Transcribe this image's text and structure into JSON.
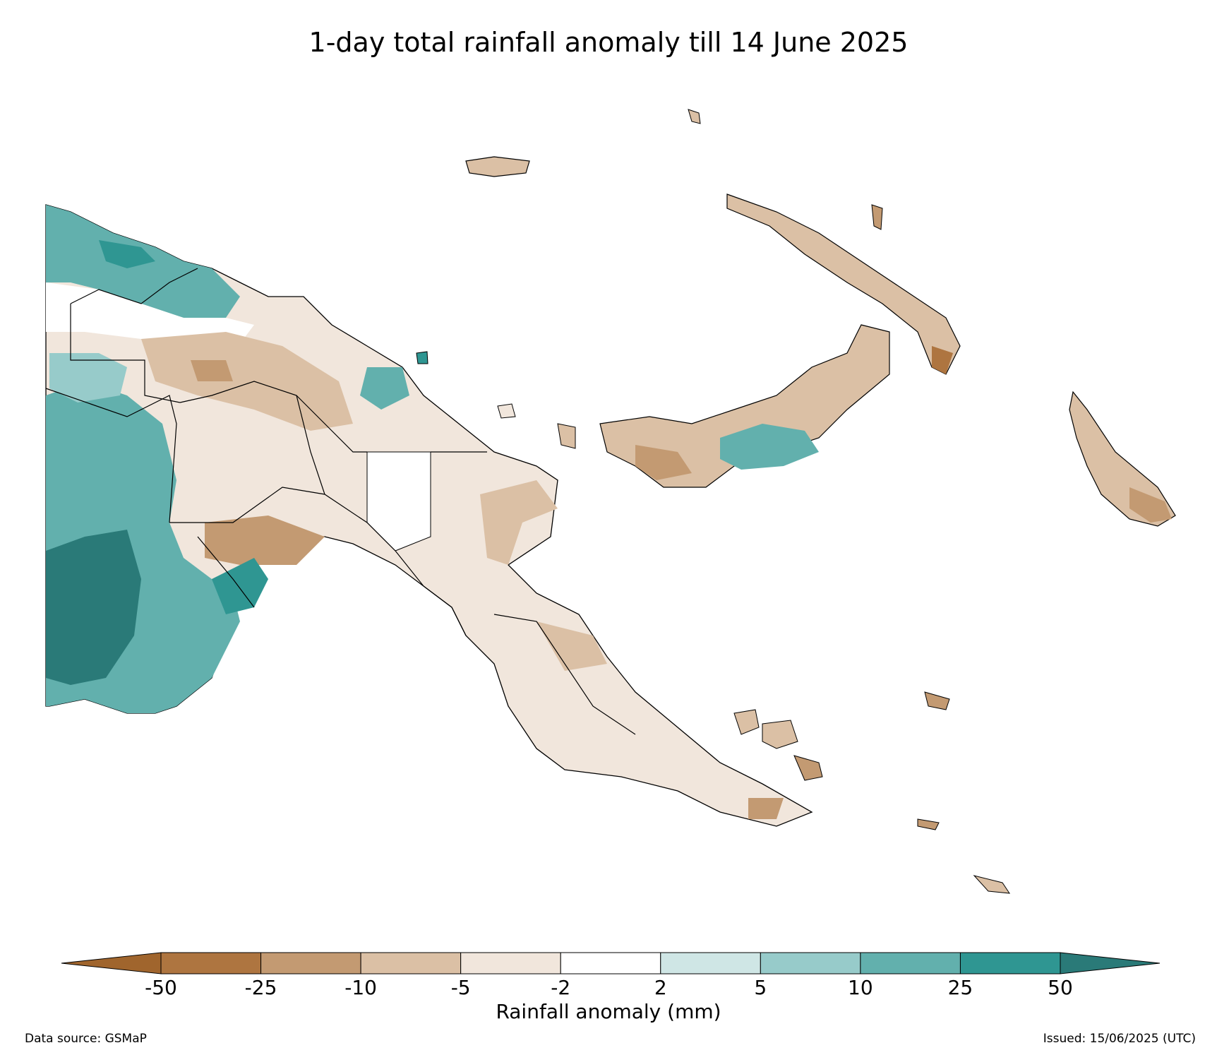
{
  "title": "1-day total rainfall anomaly till 14 June 2025",
  "colorbar": {
    "label": "Rainfall anomaly (mm)",
    "ticks": [
      "-50",
      "-25",
      "-10",
      "-5",
      "-2",
      "2",
      "5",
      "10",
      "25",
      "50"
    ],
    "extend_low_color": "#a0652d",
    "extend_high_color": "#2a7a78",
    "bins": [
      {
        "range": "-50 to -25",
        "color": "#ae7540"
      },
      {
        "range": "-25 to -10",
        "color": "#c39a72"
      },
      {
        "range": "-10 to -5",
        "color": "#dbc0a5"
      },
      {
        "range": "-5 to -2",
        "color": "#f1e6dc"
      },
      {
        "range": "-2 to 2",
        "color": "#ffffff"
      },
      {
        "range": "2 to 5",
        "color": "#cfe6e5"
      },
      {
        "range": "5 to 10",
        "color": "#97cbca"
      },
      {
        "range": "10 to 25",
        "color": "#62b0ad"
      },
      {
        "range": "25 to 50",
        "color": "#2f9692"
      }
    ]
  },
  "footer": {
    "source": "Data source: GSMaP",
    "issued": "Issued: 15/06/2025 (UTC)"
  }
}
